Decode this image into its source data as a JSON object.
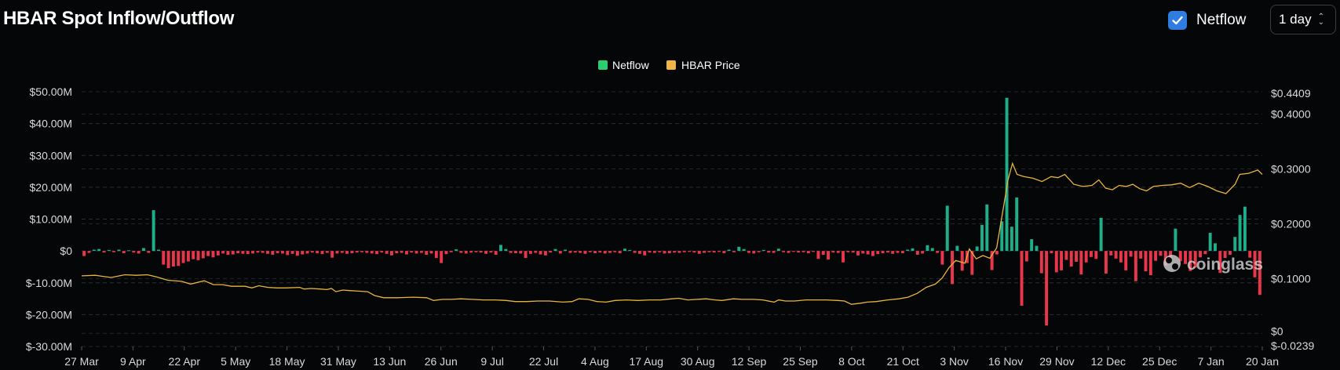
{
  "header": {
    "title": "HBAR Spot Inflow/Outflow"
  },
  "controls": {
    "netflow_label": "Netflow",
    "netflow_checked": true,
    "interval_value": "1 day"
  },
  "watermark": "coinglass",
  "colors": {
    "positive": "#1fae8a",
    "negative": "#e8374a",
    "price": "#e9b43b",
    "legend_netflow": "#2ecc71",
    "legend_price": "#f0b542",
    "background": "#050608"
  },
  "chart_data": {
    "type": "bar+line",
    "legend": [
      "Netflow",
      "HBAR Price"
    ],
    "x_tick_labels": [
      "27 Mar",
      "9 Apr",
      "22 Apr",
      "5 May",
      "18 May",
      "31 May",
      "13 Jun",
      "26 Jun",
      "9 Jul",
      "22 Jul",
      "4 Aug",
      "17 Aug",
      "30 Aug",
      "12 Sep",
      "25 Sep",
      "8 Oct",
      "21 Oct",
      "3 Nov",
      "16 Nov",
      "29 Nov",
      "12 Dec",
      "25 Dec",
      "7 Jan",
      "20 Jan"
    ],
    "left_axis": {
      "unit": "USD",
      "ylim": [
        -30000000,
        50000000
      ],
      "tick_labels": [
        "$50.00M",
        "$40.00M",
        "$30.00M",
        "$20.00M",
        "$10.00M",
        "$0",
        "$-10.00M",
        "$-20.00M",
        "$-30.00M"
      ],
      "tick_values": [
        50000000,
        40000000,
        30000000,
        20000000,
        10000000,
        0,
        -10000000,
        -20000000,
        -30000000
      ]
    },
    "right_axis": {
      "unit": "USD",
      "ylim": [
        -0.0239,
        0.4409
      ],
      "tick_labels": [
        "$0.4409",
        "$0.4000",
        "$0.3000",
        "$0.2000",
        "$0.1000",
        "$0",
        "$-0.0239"
      ],
      "tick_values": [
        0.4409,
        0.4,
        0.3,
        0.2,
        0.1,
        0,
        -0.0239
      ]
    },
    "grid": true,
    "legend_position": "top-center",
    "netflow_millions": [
      -1.6,
      -0.6,
      0.4,
      0.6,
      -0.5,
      0.3,
      -0.4,
      0.4,
      -0.7,
      0.2,
      -0.5,
      -0.8,
      0.9,
      -0.6,
      12.8,
      0.4,
      -4.3,
      -5.4,
      -4.9,
      -4.7,
      -3.8,
      -3.3,
      -2.6,
      -2.9,
      -2.3,
      -1.6,
      -2,
      -1.4,
      -0.8,
      -1.2,
      -1.1,
      -0.7,
      -0.9,
      -1,
      -0.8,
      -0.5,
      -0.6,
      -0.9,
      -1.2,
      -0.7,
      -0.8,
      -1.3,
      -0.9,
      -1.5,
      -1.1,
      -0.8,
      -0.5,
      -0.7,
      -1,
      -0.6,
      -2.1,
      -0.8,
      -0.6,
      -0.9,
      -0.7,
      -0.5,
      -0.4,
      -0.6,
      -0.8,
      -1,
      -0.5,
      -0.9,
      -1.4,
      -0.7,
      -0.6,
      -1.1,
      -0.5,
      -0.8,
      -0.6,
      -1.2,
      -0.8,
      -2.2,
      -3.8,
      -1,
      -0.4,
      0.5,
      -0.6,
      -0.8,
      -0.5,
      -0.4,
      -0.5,
      -0.9,
      -0.5,
      -1.2,
      1.9,
      0.6,
      -0.6,
      -0.7,
      -0.8,
      -2.2,
      -0.9,
      -0.6,
      -1.1,
      -1.4,
      -0.5,
      0.6,
      -0.8,
      0.4,
      -0.6,
      -0.5,
      -0.6,
      -0.9,
      -0.4,
      -0.7,
      -0.5,
      -0.8,
      -0.6,
      -0.4,
      -0.7,
      0.7,
      0.3,
      -0.6,
      -0.9,
      -1.4,
      -0.5,
      -0.6,
      -0.4,
      -0.8,
      -0.7,
      -0.5,
      -0.6,
      -0.4,
      -0.3,
      -0.5,
      -0.9,
      -0.6,
      -0.4,
      -0.5,
      -0.3,
      -0.7,
      0.4,
      -0.4,
      1.3,
      0.6,
      -0.6,
      -0.8,
      -0.4,
      0.3,
      -0.5,
      -0.6,
      0.7,
      -0.4,
      -0.6,
      -0.3,
      -0.5,
      -0.4,
      -0.7,
      -0.3,
      -2.5,
      -1.2,
      -2.7,
      -0.5,
      -0.6,
      -3.6,
      -0.4,
      -0.5,
      -1.4,
      -0.8,
      -1.1,
      -1.6,
      -1,
      -0.7,
      -0.5,
      -0.9,
      -0.6,
      -0.7,
      0.4,
      0.8,
      -1.2,
      -0.8,
      1.8,
      0.9,
      -0.6,
      -4.3,
      14.2,
      -10.4,
      1.6,
      -6.2,
      -3.8,
      -7.5,
      1.4,
      8.2,
      14.6,
      -6,
      -1.1,
      9.3,
      48.1,
      7.6,
      16.8,
      -17.2,
      -3.3,
      3.7,
      1.6,
      -7,
      -23.4,
      -0.7,
      -6.7,
      -6.1,
      -2.8,
      -4.9,
      -3.4,
      -7.4,
      -3.6,
      -1.9,
      -2.5,
      10.4,
      -7.1,
      -1.4,
      -2.4,
      -3.6,
      -6.1,
      -1.8,
      -9.5,
      -2.4,
      -6.4,
      -7.6,
      -3.1,
      -1.5,
      -4.6,
      -2.4,
      7,
      -3.2,
      -4.1,
      -6.3,
      -5.2,
      -2,
      -1,
      5.7,
      2.4,
      -6.9,
      -2.2,
      -1.2,
      4.4,
      11.3,
      13.9,
      -2.1,
      -8.3,
      -13.8
    ],
    "price_points": [
      [
        0,
        0.105
      ],
      [
        6,
        0.106
      ],
      [
        13,
        0.102
      ],
      [
        19,
        0.107
      ],
      [
        24,
        0.106
      ],
      [
        29,
        0.107
      ],
      [
        33,
        0.103
      ],
      [
        38,
        0.097
      ],
      [
        44,
        0.095
      ],
      [
        48,
        0.09
      ],
      [
        54,
        0.096
      ],
      [
        58,
        0.089
      ],
      [
        62,
        0.089
      ],
      [
        66,
        0.086
      ],
      [
        72,
        0.086
      ],
      [
        75,
        0.083
      ],
      [
        78,
        0.087
      ],
      [
        82,
        0.084
      ],
      [
        86,
        0.083
      ],
      [
        90,
        0.083
      ],
      [
        96,
        0.084
      ],
      [
        98,
        0.081
      ],
      [
        101,
        0.082
      ],
      [
        105,
        0.081
      ],
      [
        108,
        0.08
      ],
      [
        110,
        0.082
      ],
      [
        112,
        0.076
      ],
      [
        115,
        0.079
      ],
      [
        118,
        0.078
      ],
      [
        122,
        0.077
      ],
      [
        126,
        0.076
      ],
      [
        129,
        0.069
      ],
      [
        133,
        0.065
      ],
      [
        139,
        0.065
      ],
      [
        146,
        0.066
      ],
      [
        152,
        0.065
      ],
      [
        155,
        0.06
      ],
      [
        159,
        0.062
      ],
      [
        163,
        0.062
      ],
      [
        167,
        0.063
      ],
      [
        172,
        0.062
      ],
      [
        177,
        0.061
      ],
      [
        182,
        0.061
      ],
      [
        187,
        0.06
      ],
      [
        191,
        0.058
      ],
      [
        196,
        0.058
      ],
      [
        201,
        0.059
      ],
      [
        206,
        0.059
      ],
      [
        212,
        0.057
      ],
      [
        216,
        0.058
      ],
      [
        219,
        0.063
      ],
      [
        223,
        0.062
      ],
      [
        227,
        0.058
      ],
      [
        231,
        0.057
      ],
      [
        235,
        0.06
      ],
      [
        240,
        0.061
      ],
      [
        245,
        0.06
      ],
      [
        250,
        0.061
      ],
      [
        255,
        0.061
      ],
      [
        260,
        0.063
      ],
      [
        263,
        0.064
      ],
      [
        267,
        0.061
      ],
      [
        271,
        0.062
      ],
      [
        275,
        0.063
      ],
      [
        279,
        0.061
      ],
      [
        282,
        0.06
      ],
      [
        287,
        0.063
      ],
      [
        291,
        0.062
      ],
      [
        296,
        0.062
      ],
      [
        300,
        0.061
      ],
      [
        305,
        0.057
      ],
      [
        307,
        0.061
      ],
      [
        310,
        0.059
      ],
      [
        314,
        0.059
      ],
      [
        319,
        0.061
      ],
      [
        323,
        0.061
      ],
      [
        328,
        0.061
      ],
      [
        333,
        0.06
      ],
      [
        336,
        0.059
      ],
      [
        339,
        0.053
      ],
      [
        343,
        0.055
      ],
      [
        346,
        0.057
      ],
      [
        350,
        0.058
      ],
      [
        355,
        0.061
      ],
      [
        360,
        0.063
      ],
      [
        364,
        0.066
      ],
      [
        368,
        0.073
      ],
      [
        372,
        0.084
      ],
      [
        376,
        0.09
      ],
      [
        379,
        0.101
      ],
      [
        382,
        0.12
      ],
      [
        385,
        0.133
      ],
      [
        389,
        0.128
      ],
      [
        391,
        0.154
      ],
      [
        394,
        0.136
      ],
      [
        397,
        0.142
      ],
      [
        400,
        0.137
      ],
      [
        403,
        0.156
      ],
      [
        406,
        0.23
      ],
      [
        408,
        0.28
      ],
      [
        410,
        0.31
      ],
      [
        412,
        0.29
      ],
      [
        415,
        0.286
      ],
      [
        419,
        0.283
      ],
      [
        423,
        0.277
      ],
      [
        427,
        0.286
      ],
      [
        430,
        0.284
      ],
      [
        433,
        0.29
      ],
      [
        437,
        0.272
      ],
      [
        441,
        0.268
      ],
      [
        445,
        0.27
      ],
      [
        448,
        0.28
      ],
      [
        451,
        0.265
      ],
      [
        454,
        0.262
      ],
      [
        457,
        0.27
      ],
      [
        460,
        0.268
      ],
      [
        463,
        0.272
      ],
      [
        466,
        0.264
      ],
      [
        469,
        0.26
      ],
      [
        472,
        0.268
      ],
      [
        476,
        0.27
      ],
      [
        480,
        0.271
      ],
      [
        484,
        0.274
      ],
      [
        488,
        0.266
      ],
      [
        492,
        0.274
      ],
      [
        496,
        0.268
      ],
      [
        500,
        0.26
      ],
      [
        504,
        0.255
      ],
      [
        508,
        0.272
      ],
      [
        510,
        0.29
      ],
      [
        514,
        0.292
      ],
      [
        518,
        0.298
      ],
      [
        520,
        0.29
      ]
    ],
    "price_x_range": [
      0,
      520
    ]
  }
}
